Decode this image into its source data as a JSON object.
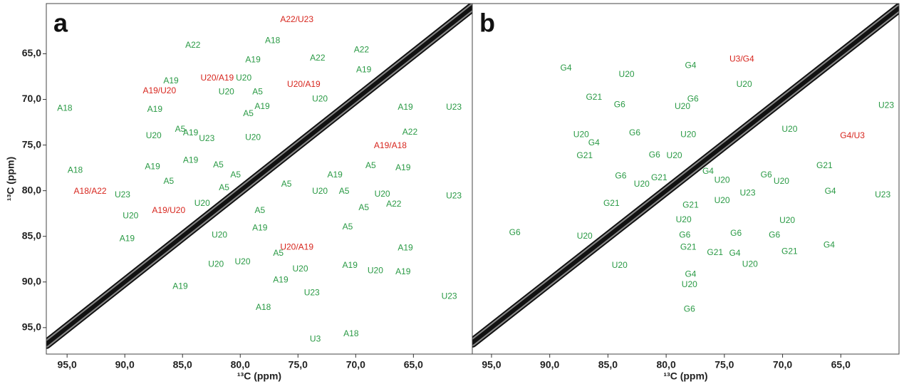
{
  "chart_data": [
    {
      "type": "contour",
      "panel_label": "a",
      "xlabel": "¹³C (ppm)",
      "ylabel": "¹³C (ppm)",
      "xlim": [
        96.8,
        59.9
      ],
      "ylim": [
        59.5,
        97.9
      ],
      "xticks": [
        {
          "value": 95,
          "label": "95,0"
        },
        {
          "value": 90,
          "label": "90,0"
        },
        {
          "value": 85,
          "label": "85,0"
        },
        {
          "value": 80,
          "label": "80,0"
        },
        {
          "value": 75,
          "label": "75,0"
        },
        {
          "value": 70,
          "label": "70,0"
        },
        {
          "value": 65,
          "label": "65,0"
        }
      ],
      "yticks": [
        {
          "value": 65,
          "label": "65,0"
        },
        {
          "value": 70,
          "label": "70,0"
        },
        {
          "value": 75,
          "label": "75,0"
        },
        {
          "value": 80,
          "label": "80,0"
        },
        {
          "value": 85,
          "label": "85,0"
        },
        {
          "value": 90,
          "label": "90,0"
        },
        {
          "value": 95,
          "label": "95,0"
        }
      ],
      "label_groups": [
        {
          "color": "#d7261e",
          "items": [
            {
              "text": "A22/U23",
              "x": 75.1,
              "y": 61.3
            },
            {
              "text": "U20/A19",
              "x": 82.0,
              "y": 67.7
            },
            {
              "text": "A19/U20",
              "x": 87.0,
              "y": 69.1
            },
            {
              "text": "U20/A19",
              "x": 74.5,
              "y": 68.4
            },
            {
              "text": "A19/A18",
              "x": 67.0,
              "y": 75.1
            },
            {
              "text": "A18/A22",
              "x": 93.0,
              "y": 80.1
            },
            {
              "text": "A19/U20",
              "x": 86.2,
              "y": 82.2
            },
            {
              "text": "U20/A19",
              "x": 75.1,
              "y": 86.2
            }
          ]
        },
        {
          "color": "#2a9a45",
          "items": [
            {
              "text": "A18",
              "x": 77.2,
              "y": 63.6
            },
            {
              "text": "A22",
              "x": 84.1,
              "y": 64.1
            },
            {
              "text": "A19",
              "x": 78.9,
              "y": 65.7
            },
            {
              "text": "A22",
              "x": 73.3,
              "y": 65.5
            },
            {
              "text": "A22",
              "x": 69.5,
              "y": 64.6
            },
            {
              "text": "A19",
              "x": 69.3,
              "y": 66.8
            },
            {
              "text": "A19",
              "x": 86.0,
              "y": 68.0
            },
            {
              "text": "U20",
              "x": 81.2,
              "y": 69.2
            },
            {
              "text": "A5",
              "x": 78.5,
              "y": 69.2
            },
            {
              "text": "U20",
              "x": 79.7,
              "y": 67.7
            },
            {
              "text": "U20",
              "x": 73.1,
              "y": 70.0
            },
            {
              "text": "A5",
              "x": 79.3,
              "y": 71.6
            },
            {
              "text": "A19",
              "x": 78.1,
              "y": 70.8
            },
            {
              "text": "A18",
              "x": 95.2,
              "y": 71.0
            },
            {
              "text": "A19",
              "x": 87.4,
              "y": 71.1
            },
            {
              "text": "A5",
              "x": 85.2,
              "y": 73.3
            },
            {
              "text": "A19",
              "x": 84.3,
              "y": 73.7
            },
            {
              "text": "U23",
              "x": 82.9,
              "y": 74.3
            },
            {
              "text": "U20",
              "x": 78.9,
              "y": 74.2
            },
            {
              "text": "U20",
              "x": 87.5,
              "y": 74.0
            },
            {
              "text": "A19",
              "x": 65.7,
              "y": 70.9
            },
            {
              "text": "U23",
              "x": 61.5,
              "y": 70.9
            },
            {
              "text": "A22",
              "x": 65.3,
              "y": 73.6
            },
            {
              "text": "A18",
              "x": 94.3,
              "y": 77.8
            },
            {
              "text": "A19",
              "x": 84.3,
              "y": 76.7
            },
            {
              "text": "A19",
              "x": 87.6,
              "y": 77.4
            },
            {
              "text": "A5",
              "x": 81.9,
              "y": 77.2
            },
            {
              "text": "A5",
              "x": 86.2,
              "y": 79.0
            },
            {
              "text": "A5",
              "x": 80.4,
              "y": 78.3
            },
            {
              "text": "A5",
              "x": 81.4,
              "y": 79.7
            },
            {
              "text": "A5",
              "x": 76.0,
              "y": 79.3
            },
            {
              "text": "U23",
              "x": 90.2,
              "y": 80.5
            },
            {
              "text": "U20",
              "x": 83.3,
              "y": 81.4
            },
            {
              "text": "A19",
              "x": 71.8,
              "y": 78.3
            },
            {
              "text": "A5",
              "x": 68.7,
              "y": 77.3
            },
            {
              "text": "A19",
              "x": 65.9,
              "y": 77.5
            },
            {
              "text": "U20",
              "x": 73.1,
              "y": 80.1
            },
            {
              "text": "A5",
              "x": 71.0,
              "y": 80.1
            },
            {
              "text": "U20",
              "x": 67.7,
              "y": 80.4
            },
            {
              "text": "A5",
              "x": 69.3,
              "y": 81.9
            },
            {
              "text": "A22",
              "x": 66.7,
              "y": 81.5
            },
            {
              "text": "U23",
              "x": 61.5,
              "y": 80.6
            },
            {
              "text": "U20",
              "x": 89.5,
              "y": 82.8
            },
            {
              "text": "A5",
              "x": 78.3,
              "y": 82.2
            },
            {
              "text": "A19",
              "x": 78.3,
              "y": 84.1
            },
            {
              "text": "U20",
              "x": 81.8,
              "y": 84.9
            },
            {
              "text": "A5",
              "x": 70.7,
              "y": 84.0
            },
            {
              "text": "A19",
              "x": 65.7,
              "y": 86.3
            },
            {
              "text": "A19",
              "x": 89.8,
              "y": 85.3
            },
            {
              "text": "A5",
              "x": 76.7,
              "y": 86.9
            },
            {
              "text": "U20",
              "x": 79.8,
              "y": 87.8
            },
            {
              "text": "U20",
              "x": 82.1,
              "y": 88.1
            },
            {
              "text": "A19",
              "x": 76.5,
              "y": 89.8
            },
            {
              "text": "U20",
              "x": 74.8,
              "y": 88.6
            },
            {
              "text": "A19",
              "x": 70.5,
              "y": 88.2
            },
            {
              "text": "U20",
              "x": 68.3,
              "y": 88.8
            },
            {
              "text": "A19",
              "x": 65.9,
              "y": 88.9
            },
            {
              "text": "A19",
              "x": 85.2,
              "y": 90.5
            },
            {
              "text": "A18",
              "x": 78.0,
              "y": 92.8
            },
            {
              "text": "U23",
              "x": 73.8,
              "y": 91.2
            },
            {
              "text": "U3",
              "x": 73.5,
              "y": 96.3
            },
            {
              "text": "A18",
              "x": 70.4,
              "y": 95.7
            },
            {
              "text": "U23",
              "x": 61.9,
              "y": 91.6
            }
          ]
        }
      ]
    },
    {
      "type": "contour",
      "panel_label": "b",
      "xlabel": "¹³C (ppm)",
      "xlim": [
        96.65,
        60.0
      ],
      "ylim": [
        59.5,
        97.9
      ],
      "xticks": [
        {
          "value": 95,
          "label": "95,0"
        },
        {
          "value": 90,
          "label": "90,0"
        },
        {
          "value": 85,
          "label": "85,0"
        },
        {
          "value": 80,
          "label": "80,0"
        },
        {
          "value": 75,
          "label": "75,0"
        },
        {
          "value": 70,
          "label": "70,0"
        },
        {
          "value": 65,
          "label": "65,0"
        }
      ],
      "label_groups": [
        {
          "color": "#d7261e",
          "items": [
            {
              "text": "U3/G4",
              "x": 73.5,
              "y": 65.6
            },
            {
              "text": "G4/U3",
              "x": 64.0,
              "y": 74.0
            }
          ]
        },
        {
          "color": "#2a9a45",
          "items": [
            {
              "text": "G4",
              "x": 88.6,
              "y": 66.6
            },
            {
              "text": "G21",
              "x": 86.2,
              "y": 69.8
            },
            {
              "text": "U20",
              "x": 83.4,
              "y": 67.3
            },
            {
              "text": "G4",
              "x": 77.9,
              "y": 66.3
            },
            {
              "text": "U20",
              "x": 73.3,
              "y": 68.4
            },
            {
              "text": "G6",
              "x": 77.7,
              "y": 70.0
            },
            {
              "text": "G6",
              "x": 84.0,
              "y": 70.6
            },
            {
              "text": "U20",
              "x": 78.6,
              "y": 70.8
            },
            {
              "text": "U23",
              "x": 61.1,
              "y": 70.7
            },
            {
              "text": "U20",
              "x": 87.3,
              "y": 73.9
            },
            {
              "text": "G4",
              "x": 86.2,
              "y": 74.8
            },
            {
              "text": "G6",
              "x": 82.7,
              "y": 73.7
            },
            {
              "text": "U20",
              "x": 78.1,
              "y": 73.9
            },
            {
              "text": "U20",
              "x": 69.4,
              "y": 73.3
            },
            {
              "text": "G21",
              "x": 87.0,
              "y": 76.2
            },
            {
              "text": "G6",
              "x": 81.0,
              "y": 76.1
            },
            {
              "text": "U20",
              "x": 79.3,
              "y": 76.2
            },
            {
              "text": "G21",
              "x": 66.4,
              "y": 77.3
            },
            {
              "text": "G6",
              "x": 83.9,
              "y": 78.4
            },
            {
              "text": "G21",
              "x": 80.6,
              "y": 78.6
            },
            {
              "text": "G4",
              "x": 76.4,
              "y": 77.9
            },
            {
              "text": "U20",
              "x": 75.2,
              "y": 78.9
            },
            {
              "text": "G6",
              "x": 71.4,
              "y": 78.3
            },
            {
              "text": "U20",
              "x": 70.1,
              "y": 79.0
            },
            {
              "text": "U20",
              "x": 82.1,
              "y": 79.3
            },
            {
              "text": "G4",
              "x": 65.9,
              "y": 80.1
            },
            {
              "text": "U23",
              "x": 73.0,
              "y": 80.3
            },
            {
              "text": "U23",
              "x": 61.4,
              "y": 80.5
            },
            {
              "text": "G21",
              "x": 84.7,
              "y": 81.4
            },
            {
              "text": "G21",
              "x": 77.9,
              "y": 81.6
            },
            {
              "text": "U20",
              "x": 75.2,
              "y": 81.1
            },
            {
              "text": "G6",
              "x": 74.0,
              "y": 84.7
            },
            {
              "text": "U20",
              "x": 78.5,
              "y": 83.2
            },
            {
              "text": "U20",
              "x": 69.6,
              "y": 83.3
            },
            {
              "text": "U20",
              "x": 87.0,
              "y": 85.0
            },
            {
              "text": "G6",
              "x": 93.0,
              "y": 84.6
            },
            {
              "text": "G6",
              "x": 78.4,
              "y": 84.9
            },
            {
              "text": "G6",
              "x": 70.7,
              "y": 84.9
            },
            {
              "text": "G21",
              "x": 78.1,
              "y": 86.2
            },
            {
              "text": "G21",
              "x": 75.8,
              "y": 86.8
            },
            {
              "text": "G4",
              "x": 74.1,
              "y": 86.9
            },
            {
              "text": "G4",
              "x": 66.0,
              "y": 86.0
            },
            {
              "text": "G21",
              "x": 69.4,
              "y": 86.7
            },
            {
              "text": "U20",
              "x": 72.8,
              "y": 88.1
            },
            {
              "text": "U20",
              "x": 84.0,
              "y": 88.2
            },
            {
              "text": "G4",
              "x": 77.9,
              "y": 89.2
            },
            {
              "text": "U20",
              "x": 78.0,
              "y": 90.3
            },
            {
              "text": "G6",
              "x": 78.0,
              "y": 93.0
            }
          ]
        }
      ]
    }
  ]
}
